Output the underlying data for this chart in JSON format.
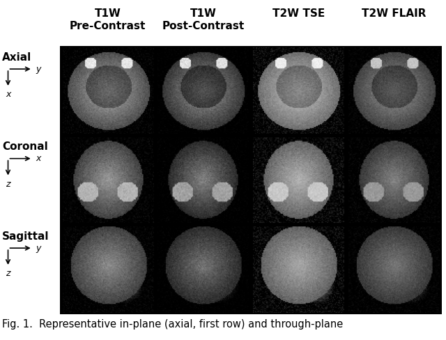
{
  "title_labels": [
    "T1W\nPre-Contrast",
    "T1W\nPost-Contrast",
    "T2W TSE",
    "T2W FLAIR"
  ],
  "row_labels": [
    "Axial",
    "Coronal",
    "Sagittal"
  ],
  "row_axis_labels": [
    {
      "h": "y",
      "v": "x"
    },
    {
      "h": "x",
      "v": "z"
    },
    {
      "h": "y",
      "v": "z"
    }
  ],
  "caption": "Fig. 1.  Representative in-plane (axial, first row) and through-plane",
  "bg_color": "#000000",
  "fig_bg": "#ffffff",
  "text_color": "#000000",
  "title_fontsize": 11,
  "row_label_fontsize": 11,
  "caption_fontsize": 10.5,
  "n_cols": 4,
  "n_rows": 3
}
